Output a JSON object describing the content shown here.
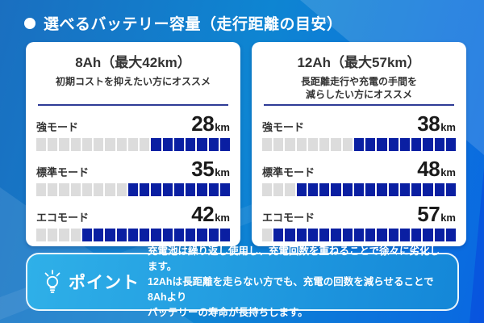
{
  "header": {
    "icon": "bullet-icon",
    "title": "選べるバッテリー容量（走行距離の目安）"
  },
  "cards": [
    {
      "title": "8Ah（最大42km）",
      "subtitle_lines": [
        "初期コストを抑えたい方にオススメ"
      ],
      "rows": [
        {
          "label": "強モード",
          "value": "28",
          "unit": "km",
          "filled": 7,
          "total": 17
        },
        {
          "label": "標準モード",
          "value": "35",
          "unit": "km",
          "filled": 9,
          "total": 17
        },
        {
          "label": "エコモード",
          "value": "42",
          "unit": "km",
          "filled": 13,
          "total": 17
        }
      ]
    },
    {
      "title": "12Ah（最大57km）",
      "subtitle_lines": [
        "長距離走行や充電の手間を",
        "減らしたい方にオススメ"
      ],
      "rows": [
        {
          "label": "強モード",
          "value": "38",
          "unit": "km",
          "filled": 9,
          "total": 17
        },
        {
          "label": "標準モード",
          "value": "48",
          "unit": "km",
          "filled": 14,
          "total": 17
        },
        {
          "label": "エコモード",
          "value": "57",
          "unit": "km",
          "filled": 16,
          "total": 17
        }
      ]
    }
  ],
  "note": {
    "icon": "lightbulb-icon",
    "label": "ポイント",
    "lines": [
      "充電池は繰り返し使用し、充電回数を重ねることで徐々に劣化します。",
      "12Ahは長距離を走らない方でも、充電の回数を減らせることで8Ahより",
      "バッテリーの寿命が長持ちします。"
    ]
  },
  "colors": {
    "background_blue_dark": "#1a6fc0",
    "background_blue_mid": "#0e85d2",
    "background_blue_vivid": "#0a68e2",
    "card_bg": "#ffffff",
    "bar_filled": "#0a1fa2",
    "bar_empty": "#dcdcdc",
    "divider": "#2e3b96",
    "text_dark": "#333333",
    "note_bg_start": "#2fb0e8",
    "note_bg_end": "#1487d8",
    "text_white": "#ffffff"
  },
  "chart_data": [
    {
      "type": "bar",
      "title": "8Ah（最大42km）",
      "subtitle": "初期コストを抑えたい方にオススメ",
      "categories": [
        "強モード",
        "標準モード",
        "エコモード"
      ],
      "values": [
        28,
        35,
        42
      ],
      "unit": "km",
      "segments_total": 17,
      "segments_filled": [
        7,
        9,
        13
      ],
      "fill_direction": "right",
      "legend": "none",
      "grid": false
    },
    {
      "type": "bar",
      "title": "12Ah（最大57km）",
      "subtitle": "長距離走行や充電の手間を減らしたい方にオススメ",
      "categories": [
        "強モード",
        "標準モード",
        "エコモード"
      ],
      "values": [
        38,
        48,
        57
      ],
      "unit": "km",
      "segments_total": 17,
      "segments_filled": [
        9,
        14,
        16
      ],
      "fill_direction": "right",
      "legend": "none",
      "grid": false
    }
  ]
}
